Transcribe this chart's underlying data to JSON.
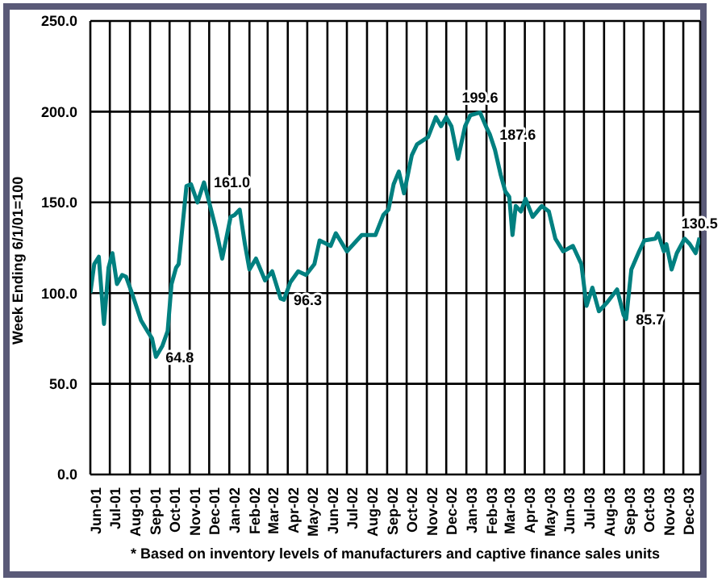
{
  "chart_data": {
    "type": "line",
    "ylabel": "Week Ending 6/1/01=100",
    "x": [
      "2001-06-01",
      "2001-06-07",
      "2001-06-14",
      "2001-06-22",
      "2001-06-29",
      "2001-07-05",
      "2001-07-12",
      "2001-07-20",
      "2001-07-26",
      "2001-08-05",
      "2001-08-18",
      "2001-08-28",
      "2001-09-04",
      "2001-09-10",
      "2001-09-20",
      "2001-09-28",
      "2001-10-04",
      "2001-10-11",
      "2001-10-15",
      "2001-10-19",
      "2001-10-27",
      "2001-11-03",
      "2001-11-13",
      "2001-11-23",
      "2001-12-01",
      "2001-12-11",
      "2001-12-21",
      "2002-01-03",
      "2002-01-09",
      "2002-01-17",
      "2002-01-25",
      "2002-02-01",
      "2002-02-11",
      "2002-02-25",
      "2002-03-08",
      "2002-03-21",
      "2002-03-26",
      "2002-04-05",
      "2002-04-17",
      "2002-04-29",
      "2002-05-12",
      "2002-05-20",
      "2002-06-06",
      "2002-06-14",
      "2002-07-01",
      "2002-07-24",
      "2002-08-14",
      "2002-08-26",
      "2002-09-03",
      "2002-09-11",
      "2002-09-19",
      "2002-09-27",
      "2002-10-09",
      "2002-10-17",
      "2002-11-03",
      "2002-11-15",
      "2002-11-23",
      "2002-12-01",
      "2002-12-09",
      "2002-12-19",
      "2002-12-30",
      "2003-01-07",
      "2003-01-22",
      "2003-01-31",
      "2003-02-06",
      "2003-02-14",
      "2003-02-23",
      "2003-03-02",
      "2003-03-08",
      "2003-03-13",
      "2003-03-18",
      "2003-03-26",
      "2003-04-02",
      "2003-04-13",
      "2003-04-27",
      "2003-05-08",
      "2003-05-18",
      "2003-05-30",
      "2003-06-14",
      "2003-06-27",
      "2003-07-05",
      "2003-07-14",
      "2003-07-24",
      "2003-08-06",
      "2003-08-21",
      "2003-08-31",
      "2003-09-04",
      "2003-09-12",
      "2003-09-24",
      "2003-10-02",
      "2003-10-19",
      "2003-10-23",
      "2003-11-01",
      "2003-11-05",
      "2003-11-13",
      "2003-11-21",
      "2003-12-03",
      "2003-12-11",
      "2003-12-20",
      "2003-12-26"
    ],
    "series": [
      {
        "color": "#008080",
        "values": [
          100,
          116,
          120,
          83,
          114,
          122,
          105,
          110,
          109,
          99,
          85,
          79,
          75,
          64.8,
          71,
          79,
          105,
          114,
          116,
          130,
          159,
          160,
          150,
          161.0,
          150,
          136,
          119,
          142,
          143,
          146,
          127,
          113,
          119,
          107,
          112,
          97,
          96.3,
          106,
          112,
          110,
          116,
          129,
          126,
          133,
          123,
          132,
          132,
          143,
          146,
          160,
          167,
          155,
          176,
          182,
          186,
          197,
          192,
          197,
          192,
          174,
          192,
          198,
          199.6,
          192,
          187.6,
          179,
          165,
          156,
          153,
          132,
          148,
          145,
          152,
          142,
          148,
          145,
          130,
          123,
          126,
          116,
          93,
          103,
          90,
          95,
          102,
          88,
          85.7,
          113,
          123,
          129,
          130,
          133,
          123,
          127,
          113,
          122,
          130,
          127,
          122,
          130.5
        ]
      }
    ],
    "xlim": [
      "2001-06-01",
      "2003-12-27"
    ],
    "xticks": [
      {
        "value": "2001-06-01",
        "label": "Jun-01"
      },
      {
        "value": "2001-07-01",
        "label": "Jul-01"
      },
      {
        "value": "2001-08-01",
        "label": "Aug-01"
      },
      {
        "value": "2001-09-01",
        "label": "Sep-01"
      },
      {
        "value": "2001-10-01",
        "label": "Oct-01"
      },
      {
        "value": "2001-11-01",
        "label": "Nov-01"
      },
      {
        "value": "2001-12-01",
        "label": "Dec-01"
      },
      {
        "value": "2002-01-01",
        "label": "Jan-02"
      },
      {
        "value": "2002-02-01",
        "label": "Feb-02"
      },
      {
        "value": "2002-03-01",
        "label": "Mar-02"
      },
      {
        "value": "2002-04-01",
        "label": "Apr-02"
      },
      {
        "value": "2002-05-01",
        "label": "May-02"
      },
      {
        "value": "2002-06-01",
        "label": "Jun-02"
      },
      {
        "value": "2002-07-01",
        "label": "Jul-02"
      },
      {
        "value": "2002-08-01",
        "label": "Aug-02"
      },
      {
        "value": "2002-09-01",
        "label": "Sep-02"
      },
      {
        "value": "2002-10-01",
        "label": "Oct-02"
      },
      {
        "value": "2002-11-01",
        "label": "Nov-02"
      },
      {
        "value": "2002-12-01",
        "label": "Dec-02"
      },
      {
        "value": "2003-01-01",
        "label": "Jan-03"
      },
      {
        "value": "2003-02-01",
        "label": "Feb-03"
      },
      {
        "value": "2003-03-01",
        "label": "Mar-03"
      },
      {
        "value": "2003-04-01",
        "label": "Apr-03"
      },
      {
        "value": "2003-05-01",
        "label": "May-03"
      },
      {
        "value": "2003-06-01",
        "label": "Jun-03"
      },
      {
        "value": "2003-07-01",
        "label": "Jul-03"
      },
      {
        "value": "2003-08-01",
        "label": "Aug-03"
      },
      {
        "value": "2003-09-01",
        "label": "Sep-03"
      },
      {
        "value": "2003-10-01",
        "label": "Oct-03"
      },
      {
        "value": "2003-11-01",
        "label": "Nov-03"
      },
      {
        "value": "2003-12-01",
        "label": "Dec-03"
      }
    ],
    "ylim": [
      0,
      250
    ],
    "yticks": [
      {
        "value": 0,
        "label": "0.0"
      },
      {
        "value": 50,
        "label": "50.0"
      },
      {
        "value": 100,
        "label": "100.0"
      },
      {
        "value": 150,
        "label": "150.0"
      },
      {
        "value": 200,
        "label": "200.0"
      },
      {
        "value": 250,
        "label": "250.0"
      }
    ],
    "grid": true,
    "marker": "none",
    "line_style": "solid",
    "annotations": [
      {
        "text": "64.8",
        "x": "2001-09-10",
        "y": 64.8
      },
      {
        "text": "161.0",
        "x": "2001-11-23",
        "y": 161.0
      },
      {
        "text": "96.3",
        "x": "2002-03-26",
        "y": 96.3
      },
      {
        "text": "199.6",
        "x": "2003-01-22",
        "y": 199.6
      },
      {
        "text": "187.6",
        "x": "2003-02-06",
        "y": 187.6
      },
      {
        "text": "85.7",
        "x": "2003-09-04",
        "y": 85.7
      },
      {
        "text": "130.5",
        "x": "2003-12-26",
        "y": 130.5
      },
      "* Based on inventory levels of manufacturers and captive finance sales units"
    ]
  }
}
